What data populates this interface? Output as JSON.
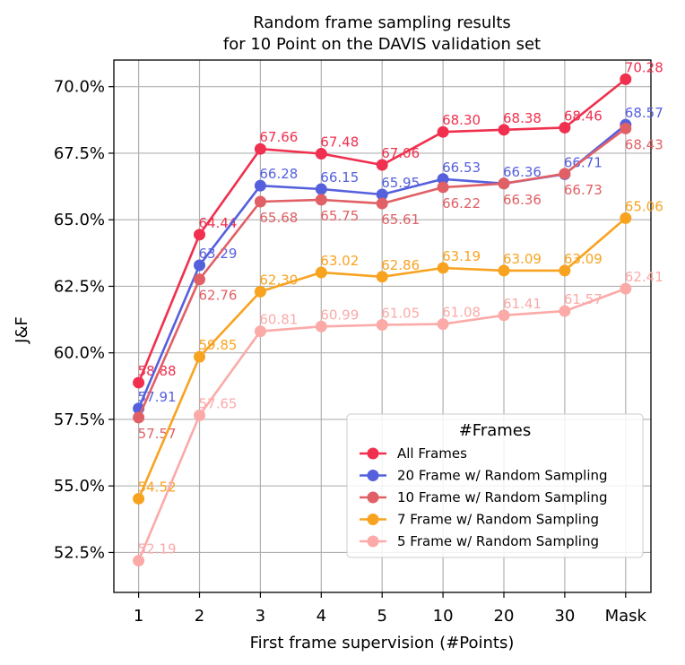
{
  "chart_data": {
    "type": "line",
    "title_lines": [
      "Random frame sampling results",
      "for 10 Point on the DAVIS validation set"
    ],
    "xlabel": "First frame supervision (#Points)",
    "ylabel": "J&F",
    "categories": [
      "1",
      "2",
      "3",
      "4",
      "5",
      "10",
      "20",
      "30",
      "Mask"
    ],
    "ylim": [
      51.0,
      71.0
    ],
    "yticks": [
      52.5,
      55.0,
      57.5,
      60.0,
      62.5,
      65.0,
      67.5,
      70.0
    ],
    "ytick_labels": [
      "52.5%",
      "55.0%",
      "57.5%",
      "60.0%",
      "62.5%",
      "65.0%",
      "67.5%",
      "70.0%"
    ],
    "grid": true,
    "legend": {
      "title": "#Frames",
      "placement": "lower-right"
    },
    "series": [
      {
        "name": "All Frames",
        "color": "#f0304e",
        "values": [
          58.88,
          64.44,
          67.66,
          67.48,
          67.06,
          68.3,
          68.38,
          68.46,
          70.28
        ],
        "labels": [
          "58.88",
          "64.44",
          "67.66",
          "67.48",
          "67.06",
          "68.30",
          "68.38",
          "68.46",
          "70.28"
        ],
        "label_pos": [
          "above",
          "above",
          "above",
          "above",
          "above",
          "above",
          "above",
          "above",
          "above"
        ]
      },
      {
        "name": "20 Frame w/ Random Sampling",
        "color": "#5560dd",
        "values": [
          57.91,
          63.29,
          66.28,
          66.15,
          65.95,
          66.53,
          66.36,
          66.71,
          68.57
        ],
        "labels": [
          "57.91",
          "63.29",
          "66.28",
          "66.15",
          "65.95",
          "66.53",
          "66.36",
          "66.71",
          "68.57"
        ],
        "label_pos": [
          "above",
          "above",
          "above",
          "above",
          "above",
          "above",
          "above",
          "above",
          "above"
        ]
      },
      {
        "name": "10 Frame w/ Random Sampling",
        "color": "#e06065",
        "values": [
          57.57,
          62.76,
          65.68,
          65.75,
          65.61,
          66.22,
          66.36,
          66.73,
          68.43
        ],
        "labels": [
          "57.57",
          "62.76",
          "65.68",
          "65.75",
          "65.61",
          "66.22",
          "66.36",
          "66.73",
          "68.43"
        ],
        "label_pos": [
          "below",
          "below",
          "below",
          "below",
          "below",
          "below",
          "below",
          "below",
          "below"
        ]
      },
      {
        "name": "7 Frame w/ Random Sampling",
        "color": "#f8a320",
        "values": [
          54.52,
          59.85,
          62.3,
          63.02,
          62.86,
          63.19,
          63.09,
          63.09,
          65.06
        ],
        "labels": [
          "54.52",
          "59.85",
          "62.30",
          "63.02",
          "62.86",
          "63.19",
          "63.09",
          "63.09",
          "65.06"
        ],
        "label_pos": [
          "above",
          "above",
          "above",
          "above",
          "above",
          "above",
          "above",
          "above",
          "above"
        ]
      },
      {
        "name": "5 Frame w/ Random Sampling",
        "color": "#fbaaa8",
        "values": [
          52.19,
          57.65,
          60.81,
          60.99,
          61.05,
          61.08,
          61.41,
          61.57,
          62.41
        ],
        "labels": [
          "52.19",
          "57.65",
          "60.81",
          "60.99",
          "61.05",
          "61.08",
          "61.41",
          "61.57",
          "62.41"
        ],
        "label_pos": [
          "above",
          "above",
          "above",
          "above",
          "above",
          "above",
          "above",
          "above",
          "above"
        ]
      }
    ]
  }
}
